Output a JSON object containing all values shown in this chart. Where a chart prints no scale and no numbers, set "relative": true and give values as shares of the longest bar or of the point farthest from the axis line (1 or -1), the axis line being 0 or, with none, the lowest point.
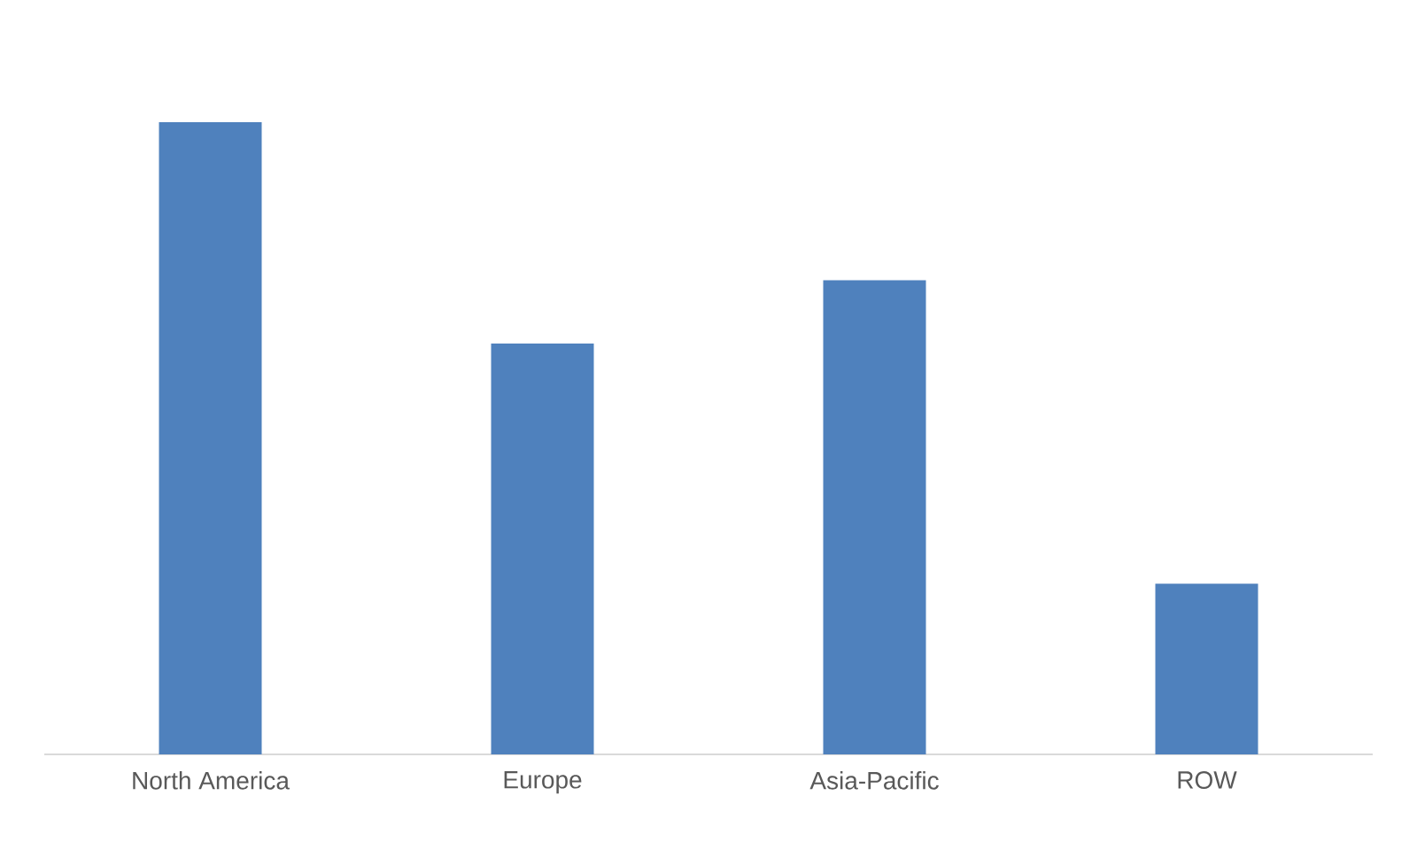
{
  "chart_data": {
    "type": "bar",
    "relative": true,
    "color": "#4f81bd",
    "categories": [
      "North America",
      "Europe",
      "Asia-Pacific",
      "ROW"
    ],
    "values": [
      1,
      0.65,
      0.75,
      0.27
    ]
  }
}
